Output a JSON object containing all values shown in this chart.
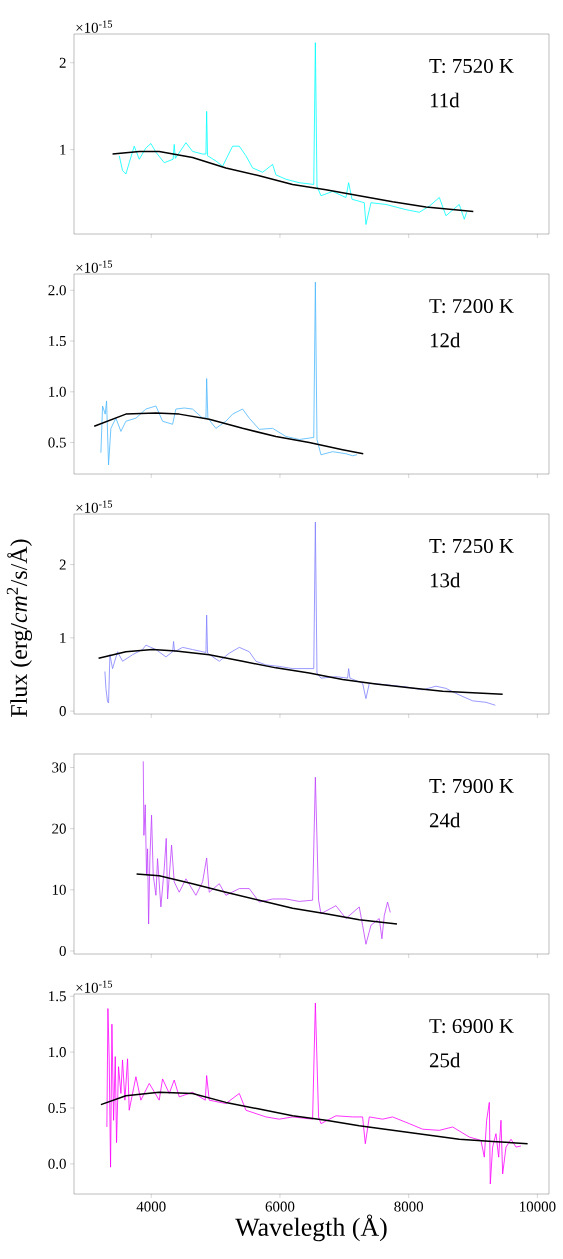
{
  "chart_data": [
    {
      "type": "line",
      "xlim": [
        2800,
        10180
      ],
      "ylim": [
        0.03,
        2.33
      ],
      "xticks": [
        4000,
        6000,
        8000,
        10000
      ],
      "yticks": [
        1,
        2
      ],
      "tick_labels": "y",
      "annotations": [
        "T: 7520 K",
        "11d",
        "×10$^{-15}$"
      ],
      "series": [
        {
          "color": "#00ffff",
          "x": [
            3503,
            3554,
            3606,
            3658,
            3736,
            3814,
            3917,
            3995,
            4073,
            4202,
            4340,
            4357,
            4375,
            4539,
            4642,
            4798,
            4850,
            4861,
            4875,
            5005,
            5109,
            5264,
            5368,
            5471,
            5575,
            5730,
            5886,
            5937,
            6093,
            6300,
            6525,
            6550,
            6575,
            6637,
            6818,
            7025,
            7067,
            7119,
            7310,
            7336,
            7414,
            7647,
            7958,
            8165,
            8320,
            8476,
            8579,
            8786,
            8864,
            8900
          ],
          "values": [
            0.93,
            0.76,
            0.72,
            0.85,
            1.04,
            0.89,
            1.02,
            1.07,
            0.97,
            0.85,
            0.89,
            1.06,
            0.9,
            1.08,
            0.98,
            0.95,
            0.95,
            1.44,
            0.93,
            0.87,
            0.81,
            1.04,
            1.04,
            0.93,
            0.79,
            0.74,
            0.83,
            0.71,
            0.66,
            0.62,
            0.6,
            2.23,
            0.58,
            0.47,
            0.52,
            0.45,
            0.62,
            0.43,
            0.39,
            0.14,
            0.39,
            0.37,
            0.31,
            0.28,
            0.35,
            0.45,
            0.24,
            0.37,
            0.2,
            0.28
          ]
        },
        {
          "color": "#000000",
          "x": [
            3399,
            3814,
            4124,
            4642,
            5160,
            5678,
            6196,
            6714,
            7232,
            7750,
            8268,
            9004
          ],
          "values": [
            0.95,
            0.98,
            0.98,
            0.91,
            0.79,
            0.7,
            0.6,
            0.54,
            0.47,
            0.4,
            0.34,
            0.29
          ]
        }
      ]
    },
    {
      "type": "line",
      "xlim": [
        2800,
        10180
      ],
      "ylim": [
        0.19,
        2.16
      ],
      "xticks": [
        4000,
        6000,
        8000,
        10000
      ],
      "yticks": [
        {
          "value": 0.5,
          "label": "0.5"
        },
        {
          "value": 1,
          "label": "1.0"
        },
        {
          "value": 1.5,
          "label": "1.5"
        },
        {
          "value": 2,
          "label": "2.0"
        }
      ],
      "tick_labels": "y",
      "annotations": [
        "T: 7200 K",
        "12d",
        "×10$^{-15}$"
      ],
      "series": [
        {
          "color": "#4cb8ff",
          "x": [
            3218,
            3244,
            3285,
            3306,
            3337,
            3373,
            3451,
            3529,
            3606,
            3762,
            3917,
            4073,
            4176,
            4332,
            4383,
            4513,
            4642,
            4798,
            4850,
            4861,
            4880,
            5005,
            5160,
            5264,
            5419,
            5523,
            5678,
            5886,
            6093,
            6300,
            6525,
            6550,
            6575,
            6637,
            6818,
            7025,
            7129,
            7196
          ],
          "values": [
            0.4,
            0.86,
            0.78,
            0.91,
            0.28,
            0.64,
            0.74,
            0.61,
            0.71,
            0.74,
            0.83,
            0.86,
            0.71,
            0.68,
            0.83,
            0.84,
            0.83,
            0.74,
            0.74,
            1.13,
            0.74,
            0.64,
            0.71,
            0.78,
            0.83,
            0.74,
            0.63,
            0.64,
            0.56,
            0.53,
            0.55,
            2.08,
            0.53,
            0.38,
            0.41,
            0.39,
            0.37,
            0.38
          ]
        },
        {
          "color": "#000000",
          "x": [
            3114,
            3606,
            4073,
            4435,
            4901,
            5419,
            5937,
            6455,
            6973,
            7294
          ],
          "values": [
            0.66,
            0.78,
            0.79,
            0.78,
            0.73,
            0.64,
            0.56,
            0.5,
            0.43,
            0.39
          ]
        }
      ]
    },
    {
      "type": "line",
      "xlim": [
        2800,
        10180
      ],
      "ylim": [
        -0.04,
        2.69
      ],
      "xticks": [
        4000,
        6000,
        8000,
        10000
      ],
      "yticks": [
        0,
        1,
        2
      ],
      "tick_labels": "y",
      "ylabel": "Flux (erg/*cm*$^{2}$/s/Å)",
      "annotations": [
        "T: 7250 K",
        "13d",
        "×10$^{-15}$"
      ],
      "series": [
        {
          "color": "#8080ff",
          "x": [
            3280,
            3296,
            3321,
            3337,
            3358,
            3399,
            3477,
            3555,
            3710,
            3865,
            3917,
            4073,
            4228,
            4332,
            4347,
            4363,
            4487,
            4642,
            4798,
            4850,
            4861,
            4875,
            5057,
            5212,
            5368,
            5523,
            5627,
            5782,
            5989,
            6196,
            6525,
            6550,
            6575,
            6637,
            6870,
            7051,
            7067,
            7087,
            7284,
            7336,
            7388,
            7647,
            7958,
            8217,
            8424,
            8579,
            8786,
            8994,
            9201,
            9346
          ],
          "values": [
            0.54,
            0.31,
            0.13,
            0.11,
            0.77,
            0.58,
            0.81,
            0.68,
            0.77,
            0.84,
            0.9,
            0.84,
            0.74,
            0.81,
            0.95,
            0.81,
            0.87,
            0.84,
            0.81,
            0.8,
            1.31,
            0.79,
            0.68,
            0.79,
            0.87,
            0.81,
            0.68,
            0.63,
            0.61,
            0.58,
            0.58,
            2.58,
            0.52,
            0.45,
            0.47,
            0.45,
            0.58,
            0.45,
            0.38,
            0.17,
            0.38,
            0.36,
            0.33,
            0.29,
            0.34,
            0.31,
            0.22,
            0.14,
            0.12,
            0.08
          ]
        },
        {
          "color": "#000000",
          "x": [
            3182,
            3606,
            4021,
            4383,
            4901,
            5419,
            5937,
            6455,
            6973,
            7491,
            8010,
            8528,
            9460
          ],
          "values": [
            0.72,
            0.81,
            0.84,
            0.82,
            0.77,
            0.68,
            0.59,
            0.52,
            0.43,
            0.37,
            0.32,
            0.27,
            0.23
          ]
        }
      ]
    },
    {
      "type": "line",
      "xlim": [
        2800,
        10180
      ],
      "ylim": [
        -0.5,
        32.2
      ],
      "xticks": [
        4000,
        6000,
        8000,
        10000
      ],
      "yticks": [
        0,
        10,
        20,
        30
      ],
      "tick_labels": "y",
      "annotations": [
        "T: 7900 K",
        "24d"
      ],
      "series": [
        {
          "color": "#bf40ff",
          "x": [
            3876,
            3886,
            3907,
            3927,
            3943,
            3959,
            3979,
            4005,
            4031,
            4073,
            4098,
            4150,
            4202,
            4233,
            4254,
            4316,
            4357,
            4435,
            4539,
            4694,
            4798,
            4861,
            4901,
            5057,
            5160,
            5368,
            5523,
            5678,
            5886,
            6093,
            6300,
            6507,
            6550,
            6600,
            6637,
            6870,
            7025,
            7232,
            7284,
            7336,
            7414,
            7543,
            7584,
            7621,
            7672,
            7714
          ],
          "values": [
            31.0,
            18.9,
            23.9,
            12.4,
            16.7,
            4.4,
            15.1,
            22.2,
            12.4,
            9.1,
            15.1,
            7.2,
            13.5,
            18.4,
            8.5,
            17.3,
            11.3,
            9.6,
            11.8,
            9.1,
            11.3,
            15.2,
            9.6,
            11.0,
            9.1,
            10.2,
            10.2,
            8.0,
            8.5,
            8.5,
            8.1,
            8.3,
            28.4,
            8.3,
            6.1,
            7.4,
            5.3,
            7.2,
            4.2,
            1.1,
            4.2,
            5.3,
            2.0,
            5.8,
            8.0,
            6.3
          ]
        },
        {
          "color": "#000000",
          "x": [
            3772,
            4124,
            4642,
            5160,
            5678,
            6196,
            6714,
            7232,
            7818
          ],
          "values": [
            12.6,
            12.3,
            11.0,
            9.6,
            8.3,
            7.0,
            6.1,
            5.1,
            4.4
          ]
        }
      ]
    },
    {
      "type": "line",
      "xlim": [
        2800,
        10180
      ],
      "ylim": [
        -0.27,
        1.52
      ],
      "xticks": [
        4000,
        6000,
        8000,
        10000
      ],
      "yticks": [
        {
          "value": 0,
          "label": "0.0"
        },
        {
          "value": 0.5,
          "label": "0.5"
        },
        {
          "value": 1,
          "label": "1.0"
        },
        {
          "value": 1.5,
          "label": "1.5"
        }
      ],
      "xlabel": "Wavelegth (Å)",
      "annotations": [
        "T: 6900 K",
        "25d",
        "×10$^{-15}$"
      ],
      "series": [
        {
          "color": "#ff00ff",
          "x": [
            3311,
            3327,
            3347,
            3368,
            3389,
            3415,
            3441,
            3461,
            3492,
            3529,
            3554,
            3591,
            3632,
            3658,
            3762,
            3839,
            3969,
            4124,
            4176,
            4280,
            4357,
            4435,
            4642,
            4840,
            4861,
            4901,
            5160,
            5368,
            5471,
            5782,
            5989,
            6196,
            6507,
            6550,
            6600,
            6637,
            6870,
            7129,
            7284,
            7326,
            7388,
            7595,
            7750,
            8009,
            8217,
            8476,
            8683,
            8942,
            9123,
            9175,
            9211,
            9253,
            9268,
            9304,
            9356,
            9398,
            9434,
            9460,
            9512,
            9590,
            9668,
            9745
          ],
          "values": [
            0.33,
            1.39,
            0.93,
            -0.03,
            1.25,
            0.39,
            0.96,
            0.19,
            0.87,
            0.63,
            0.93,
            0.57,
            0.94,
            0.48,
            0.78,
            0.57,
            0.72,
            0.57,
            0.76,
            0.63,
            0.75,
            0.6,
            0.64,
            0.57,
            0.79,
            0.57,
            0.54,
            0.63,
            0.48,
            0.42,
            0.4,
            0.42,
            0.4,
            1.44,
            0.42,
            0.36,
            0.43,
            0.42,
            0.42,
            0.18,
            0.42,
            0.4,
            0.42,
            0.36,
            0.31,
            0.3,
            0.33,
            0.24,
            0.21,
            0.06,
            0.39,
            0.55,
            -0.18,
            0.15,
            0.27,
            0.06,
            0.39,
            -0.09,
            0.15,
            0.22,
            0.15,
            0.16
          ]
        },
        {
          "color": "#000000",
          "x": [
            3218,
            3606,
            4124,
            4642,
            5160,
            5678,
            6196,
            6714,
            7232,
            7750,
            8268,
            8786,
            9304,
            9848
          ],
          "values": [
            0.53,
            0.61,
            0.64,
            0.63,
            0.55,
            0.49,
            0.43,
            0.39,
            0.34,
            0.3,
            0.26,
            0.22,
            0.2,
            0.18
          ]
        }
      ]
    }
  ]
}
